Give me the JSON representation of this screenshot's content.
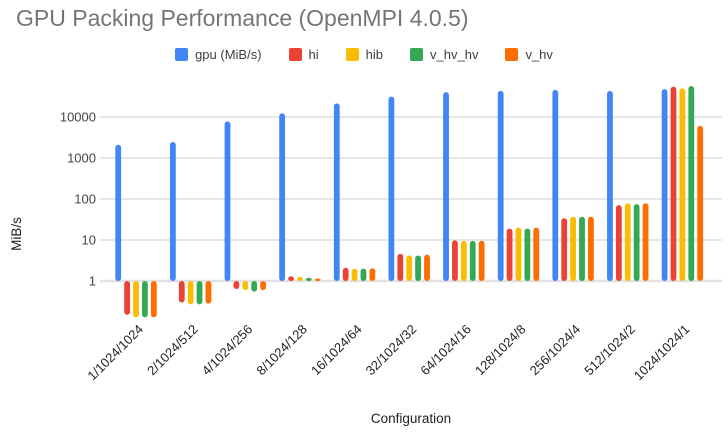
{
  "title": "GPU Packing Performance (OpenMPI 4.0.5)",
  "chart_data": {
    "type": "bar",
    "title": "GPU Packing Performance (OpenMPI 4.0.5)",
    "xlabel": "Configuration",
    "ylabel": "MiB/s",
    "y_scale": "log",
    "y_ticks": [
      1,
      10,
      100,
      1000,
      10000
    ],
    "y_range": [
      0.1,
      80000
    ],
    "grid": true,
    "legend_position": "top",
    "categories": [
      "1/1024/1024",
      "2/1024/512",
      "4/1024/256",
      "8/1024/128",
      "16/1024/64",
      "32/1024/32",
      "64/1024/16",
      "128/1024/8",
      "256/1024/4",
      "512/1024/2",
      "1024/1024/1"
    ],
    "series": [
      {
        "name": "gpu (MiB/s)",
        "color": "#4285F4",
        "values": [
          2100,
          2450,
          7800,
          12300,
          21500,
          31500,
          40500,
          43500,
          46000,
          43000,
          48000
        ]
      },
      {
        "name": "hi",
        "color": "#EA4335",
        "values": [
          0.15,
          0.3,
          0.64,
          1.3,
          2.1,
          4.6,
          9.8,
          19,
          34,
          71,
          55000
        ]
      },
      {
        "name": "hib",
        "color": "#FBBC04",
        "values": [
          0.13,
          0.27,
          0.6,
          1.25,
          2.0,
          4.2,
          9.5,
          20,
          37,
          79,
          50000
        ]
      },
      {
        "name": "v_hv_hv",
        "color": "#34A853",
        "values": [
          0.13,
          0.27,
          0.55,
          1.2,
          2.0,
          4.2,
          9.5,
          19,
          37,
          75,
          57000
        ]
      },
      {
        "name": "v_hv",
        "color": "#FF6D01",
        "values": [
          0.13,
          0.28,
          0.6,
          1.15,
          2.05,
          4.4,
          9.6,
          20,
          37,
          79,
          6100
        ]
      }
    ]
  },
  "axis": {
    "y_tick_labels": [
      "1",
      "10",
      "100",
      "1000",
      "10000"
    ],
    "y_title": "MiB/s",
    "x_title": "Configuration"
  },
  "colors": {
    "title_text": "#757575",
    "legend_text": "#3c4043",
    "axis_tick_text": "#444444",
    "axis_title_text": "#222222",
    "gridline": "#cccccc",
    "baseline": "#e2e2e2",
    "background": "#ffffff"
  }
}
